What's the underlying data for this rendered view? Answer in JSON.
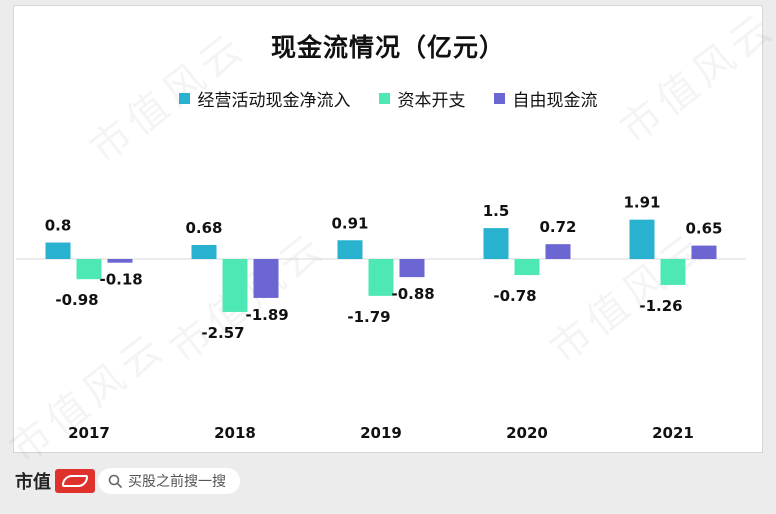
{
  "chart_data": {
    "type": "bar",
    "title": "现金流情况（亿元）",
    "categories": [
      "2017",
      "2018",
      "2019",
      "2020",
      "2021"
    ],
    "series": [
      {
        "name": "经营活动现金净流入",
        "color": "#29b2cf",
        "values": [
          0.8,
          0.68,
          0.91,
          1.5,
          1.91
        ]
      },
      {
        "name": "资本开支",
        "color": "#4ee8b4",
        "values": [
          -0.98,
          -2.57,
          -1.79,
          -0.78,
          -1.26
        ]
      },
      {
        "name": "自由现金流",
        "color": "#6c66d2",
        "values": [
          -0.18,
          -1.89,
          -0.88,
          0.72,
          0.65
        ]
      }
    ],
    "ylim": [
      -2.57,
      1.91
    ],
    "legend_position": "top-center",
    "grid": false
  },
  "watermark": "市值风云",
  "footer": {
    "brand": "市值",
    "search_placeholder": "买股之前搜一搜"
  },
  "icons": [
    "magnifier-icon",
    "brand-logo-icon"
  ]
}
